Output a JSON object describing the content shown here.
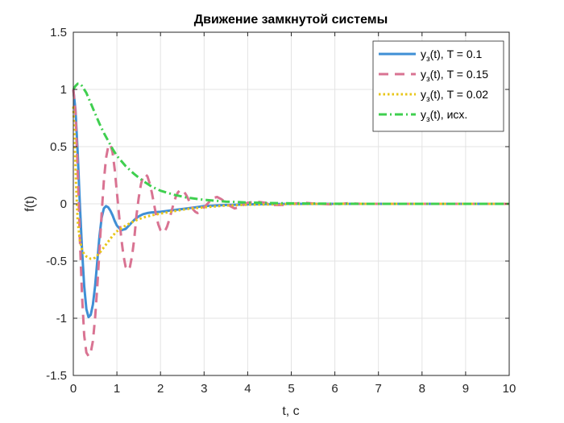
{
  "chart_data": {
    "type": "line",
    "title": "Движение замкнутой системы",
    "xlabel": "t, c",
    "ylabel": "f(t)",
    "xlim": [
      0,
      10
    ],
    "ylim": [
      -1.5,
      1.5
    ],
    "xticks": [
      0,
      1,
      2,
      3,
      4,
      5,
      6,
      7,
      8,
      9,
      10
    ],
    "xtick_labels": [
      "0",
      "1",
      "2",
      "3",
      "4",
      "5",
      "6",
      "7",
      "8",
      "9",
      "10"
    ],
    "yticks": [
      -1.5,
      -1,
      -0.5,
      0,
      0.5,
      1,
      1.5
    ],
    "ytick_labels": [
      "-1.5",
      "-1",
      "-0.5",
      "0",
      "0.5",
      "1",
      "1.5"
    ],
    "grid": true,
    "legend_position": "top-right",
    "series": [
      {
        "name": "y3(t), T = 0.1",
        "label_main": "y",
        "label_sub": "з",
        "label_rest": "(t), T = 0.1",
        "color": "#3f8fd5",
        "style": "solid",
        "x": [
          0,
          0.05,
          0.1,
          0.15,
          0.2,
          0.25,
          0.3,
          0.35,
          0.4,
          0.45,
          0.5,
          0.55,
          0.6,
          0.65,
          0.7,
          0.75,
          0.8,
          0.85,
          0.9,
          0.95,
          1.0,
          1.1,
          1.2,
          1.3,
          1.4,
          1.5,
          1.6,
          1.7,
          1.8,
          2.0,
          2.3,
          2.6,
          3.0,
          3.5,
          4.0,
          5.0,
          6.0,
          7.0,
          8.0,
          9.0,
          10.0
        ],
        "y": [
          1.0,
          0.82,
          0.45,
          0.0,
          -0.4,
          -0.72,
          -0.92,
          -0.99,
          -0.97,
          -0.88,
          -0.72,
          -0.5,
          -0.28,
          -0.12,
          -0.04,
          -0.02,
          -0.03,
          -0.06,
          -0.1,
          -0.15,
          -0.19,
          -0.23,
          -0.22,
          -0.18,
          -0.14,
          -0.11,
          -0.09,
          -0.08,
          -0.075,
          -0.07,
          -0.055,
          -0.04,
          -0.02,
          -0.01,
          -0.004,
          0,
          0,
          0,
          0,
          0,
          0
        ]
      },
      {
        "name": "y3(t), T = 0.15",
        "label_main": "y",
        "label_sub": "з",
        "label_rest": "(t), T = 0.15",
        "color": "#d97392",
        "style": "dashed",
        "x": [
          0,
          0.05,
          0.1,
          0.15,
          0.2,
          0.25,
          0.3,
          0.35,
          0.4,
          0.45,
          0.5,
          0.55,
          0.6,
          0.65,
          0.7,
          0.75,
          0.8,
          0.85,
          0.9,
          0.95,
          1.0,
          1.05,
          1.1,
          1.15,
          1.2,
          1.25,
          1.3,
          1.35,
          1.4,
          1.45,
          1.5,
          1.55,
          1.6,
          1.65,
          1.7,
          1.75,
          1.8,
          1.85,
          1.9,
          1.95,
          2.0,
          2.05,
          2.1,
          2.15,
          2.2,
          2.25,
          2.3,
          2.35,
          2.4,
          2.45,
          2.5,
          2.55,
          2.6,
          2.65,
          2.7,
          2.75,
          2.8,
          2.85,
          2.9,
          2.95,
          3.0,
          3.1,
          3.2,
          3.3,
          3.4,
          3.5,
          3.6,
          3.7,
          3.8,
          3.9,
          4.0,
          4.2,
          4.4,
          4.6,
          4.8,
          5.0,
          5.3,
          5.6,
          6.0,
          6.3,
          6.6,
          7.0,
          7.5,
          8.0,
          9.0,
          10.0
        ],
        "y": [
          1.0,
          0.8,
          0.3,
          -0.3,
          -0.8,
          -1.15,
          -1.3,
          -1.33,
          -1.3,
          -1.2,
          -1.0,
          -0.72,
          -0.4,
          -0.08,
          0.2,
          0.4,
          0.5,
          0.52,
          0.45,
          0.3,
          0.1,
          -0.1,
          -0.3,
          -0.45,
          -0.55,
          -0.58,
          -0.55,
          -0.45,
          -0.3,
          -0.1,
          0.05,
          0.17,
          0.24,
          0.26,
          0.24,
          0.18,
          0.1,
          0.0,
          -0.1,
          -0.18,
          -0.23,
          -0.25,
          -0.24,
          -0.2,
          -0.14,
          -0.07,
          0.0,
          0.06,
          0.1,
          0.12,
          0.12,
          0.1,
          0.07,
          0.03,
          -0.01,
          -0.05,
          -0.07,
          -0.08,
          -0.07,
          -0.05,
          -0.03,
          0.01,
          0.05,
          0.06,
          0.04,
          0.01,
          -0.02,
          -0.04,
          -0.03,
          -0.01,
          0.01,
          0.02,
          0.01,
          -0.01,
          -0.01,
          0.0,
          0.01,
          0.0,
          -0.005,
          0.005,
          0.0,
          0.0,
          0.0,
          0.0,
          0.0,
          0.0
        ]
      },
      {
        "name": "y3(t), T = 0.02",
        "label_main": "y",
        "label_sub": "з",
        "label_rest": "(t), T = 0.02",
        "color": "#e8c619",
        "style": "dotted",
        "x": [
          0,
          0.03,
          0.06,
          0.1,
          0.15,
          0.2,
          0.25,
          0.3,
          0.35,
          0.4,
          0.45,
          0.5,
          0.55,
          0.6,
          0.7,
          0.8,
          0.9,
          1.0,
          1.2,
          1.4,
          1.6,
          1.8,
          2.0,
          2.3,
          2.6,
          3.0,
          3.5,
          4.0,
          5.0,
          6.0,
          7.0,
          8.0,
          9.0,
          10.0
        ],
        "y": [
          0.85,
          0.6,
          0.2,
          -0.15,
          -0.32,
          -0.4,
          -0.44,
          -0.46,
          -0.47,
          -0.48,
          -0.48,
          -0.47,
          -0.45,
          -0.43,
          -0.38,
          -0.33,
          -0.28,
          -0.24,
          -0.19,
          -0.15,
          -0.12,
          -0.1,
          -0.085,
          -0.065,
          -0.045,
          -0.03,
          -0.015,
          -0.008,
          -0.002,
          0,
          0,
          0,
          0,
          0
        ]
      },
      {
        "name": "y3(t), исх.",
        "label_main": "y",
        "label_sub": "з",
        "label_rest": "(t), исх.",
        "color": "#3fcf4f",
        "style": "dashdot",
        "x": [
          0,
          0.05,
          0.1,
          0.15,
          0.2,
          0.3,
          0.4,
          0.5,
          0.6,
          0.7,
          0.8,
          0.9,
          1.0,
          1.2,
          1.4,
          1.6,
          1.8,
          2.0,
          2.3,
          2.6,
          3.0,
          3.5,
          4.0,
          4.5,
          5.0,
          6.0,
          7.0,
          8.0,
          9.0,
          10.0
        ],
        "y": [
          1.0,
          1.03,
          1.05,
          1.05,
          1.03,
          0.97,
          0.88,
          0.79,
          0.7,
          0.62,
          0.55,
          0.48,
          0.42,
          0.33,
          0.26,
          0.2,
          0.15,
          0.115,
          0.08,
          0.055,
          0.035,
          0.02,
          0.012,
          0.007,
          0.004,
          0.001,
          0,
          0,
          0,
          0
        ]
      }
    ]
  }
}
